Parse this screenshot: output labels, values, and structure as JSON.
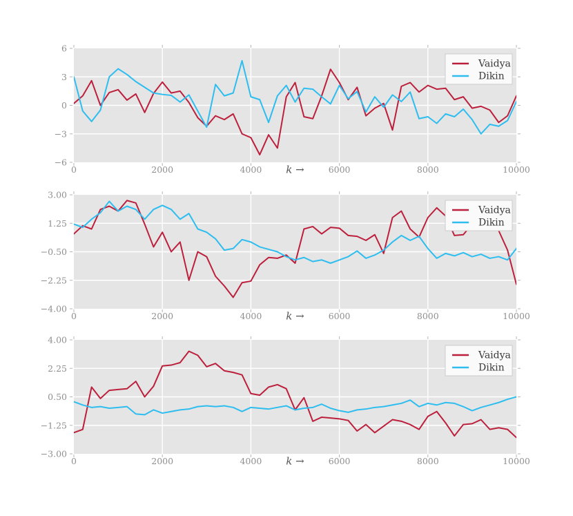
{
  "figure": {
    "background": "#ffffff",
    "plot_background": "#e5e5e5",
    "grid_color": "#ffffff",
    "tick_mark_color": "#b5b5b5",
    "tick_label_color": "#8f8f8f",
    "axis_label_color": "#545454",
    "legend_style": {
      "bg": "#fafafa",
      "border": "#cccccc",
      "text_color": "#3a3a3a"
    }
  },
  "series_colors": {
    "Vaidya": "#bc1f3b",
    "Dikin": "#2dbdef"
  },
  "chart_data": [
    {
      "name": "top",
      "type": "line",
      "title": "",
      "xlabel": "k →",
      "ylabel": "",
      "xlim": [
        0,
        10000
      ],
      "ylim": [
        -6,
        6
      ],
      "x_start": 0,
      "x_step": 200,
      "grid": true,
      "legend_position": "upper right",
      "xtick_values": [
        0,
        2000,
        4000,
        6000,
        8000,
        10000
      ],
      "xtick_labels": [
        "0",
        "2000",
        "4000",
        "6000",
        "8000",
        "10000"
      ],
      "ytick_values": [
        6,
        3,
        0,
        -3,
        -6
      ],
      "ytick_labels": [
        "6",
        "3",
        "0",
        "−3",
        "−6"
      ],
      "series": [
        {
          "name": "Vaidya",
          "color": "#bc1f3b",
          "values": [
            0.2,
            1.0,
            2.6,
            0.0,
            1.35,
            1.65,
            0.55,
            1.2,
            -0.75,
            1.25,
            2.45,
            1.3,
            1.5,
            0.3,
            -1.3,
            -2.2,
            -1.1,
            -1.5,
            -0.9,
            -3.0,
            -3.4,
            -5.2,
            -3.1,
            -4.5,
            0.9,
            2.4,
            -1.2,
            -1.4,
            1.0,
            3.8,
            2.4,
            0.6,
            1.9,
            -1.1,
            -0.3,
            0.2,
            -2.6,
            2.0,
            2.4,
            1.4,
            2.1,
            1.7,
            1.8,
            0.6,
            0.9,
            -0.3,
            -0.1,
            -0.5,
            -1.8,
            -1.1,
            1.0
          ]
        },
        {
          "name": "Dikin",
          "color": "#2dbdef",
          "values": [
            3.0,
            -0.6,
            -1.7,
            -0.5,
            3.0,
            3.85,
            3.25,
            2.5,
            1.9,
            1.3,
            1.15,
            1.05,
            0.35,
            1.1,
            -0.6,
            -2.3,
            2.2,
            1.0,
            1.3,
            4.7,
            0.9,
            0.6,
            -1.8,
            1.0,
            2.1,
            0.35,
            1.8,
            1.7,
            0.9,
            0.15,
            2.1,
            0.7,
            1.45,
            -0.7,
            0.9,
            -0.2,
            1.1,
            0.4,
            1.4,
            -1.4,
            -1.2,
            -1.9,
            -0.9,
            -1.2,
            -0.4,
            -1.5,
            -3.0,
            -2.0,
            -2.2,
            -1.6,
            0.4
          ]
        }
      ]
    },
    {
      "name": "middle",
      "type": "line",
      "title": "",
      "xlabel": "k →",
      "ylabel": "",
      "xlim": [
        0,
        10000
      ],
      "ylim": [
        -4,
        3
      ],
      "x_start": 0,
      "x_step": 200,
      "grid": true,
      "legend_position": "upper right",
      "xtick_values": [
        0,
        2000,
        4000,
        6000,
        8000,
        10000
      ],
      "xtick_labels": [
        "0",
        "2000",
        "4000",
        "6000",
        "8000",
        "10000"
      ],
      "ytick_values": [
        3.0,
        1.25,
        -0.5,
        -2.25,
        -4.0
      ],
      "ytick_labels": [
        "3.00",
        "1.25",
        "−0.50",
        "−2.25",
        "−4.00"
      ],
      "series": [
        {
          "name": "Vaidya",
          "color": "#bc1f3b",
          "values": [
            0.6,
            1.1,
            0.9,
            2.1,
            2.3,
            2.0,
            2.65,
            2.5,
            1.2,
            -0.2,
            0.7,
            -0.5,
            0.1,
            -2.25,
            -0.5,
            -0.8,
            -2.0,
            -2.6,
            -3.3,
            -2.4,
            -2.3,
            -1.3,
            -0.85,
            -0.9,
            -0.7,
            -1.2,
            0.9,
            1.05,
            0.6,
            1.0,
            0.95,
            0.5,
            0.45,
            0.2,
            0.55,
            -0.6,
            1.6,
            2.0,
            0.9,
            0.4,
            1.6,
            2.2,
            1.7,
            0.5,
            0.55,
            1.2,
            1.15,
            1.3,
            0.8,
            -0.4,
            -2.5
          ]
        },
        {
          "name": "Dikin",
          "color": "#2dbdef",
          "values": [
            1.2,
            1.0,
            1.5,
            1.9,
            2.6,
            2.0,
            2.3,
            2.1,
            1.5,
            2.1,
            2.35,
            2.1,
            1.5,
            1.85,
            0.9,
            0.7,
            0.3,
            -0.4,
            -0.3,
            0.25,
            0.1,
            -0.2,
            -0.35,
            -0.5,
            -0.8,
            -1.0,
            -0.85,
            -1.1,
            -1.0,
            -1.2,
            -1.0,
            -0.8,
            -0.45,
            -0.9,
            -0.7,
            -0.4,
            0.1,
            0.5,
            0.2,
            0.45,
            -0.3,
            -0.9,
            -0.6,
            -0.75,
            -0.55,
            -0.8,
            -0.65,
            -0.9,
            -0.8,
            -1.0,
            -0.3
          ]
        }
      ]
    },
    {
      "name": "bottom",
      "type": "line",
      "title": "",
      "xlabel": "k →",
      "ylabel": "",
      "xlim": [
        0,
        10000
      ],
      "ylim": [
        -3,
        4
      ],
      "x_start": 0,
      "x_step": 200,
      "grid": true,
      "legend_position": "upper right",
      "xtick_values": [
        0,
        2000,
        4000,
        6000,
        8000,
        10000
      ],
      "xtick_labels": [
        "0",
        "2000",
        "4000",
        "6000",
        "8000",
        "10000"
      ],
      "ytick_values": [
        4.0,
        2.25,
        0.5,
        -1.25,
        -3.0
      ],
      "ytick_labels": [
        "4.00",
        "2.25",
        "0.50",
        "−1.25",
        "−3.00"
      ],
      "series": [
        {
          "name": "Vaidya",
          "color": "#bc1f3b",
          "values": [
            -1.7,
            -1.5,
            1.1,
            0.4,
            0.9,
            0.95,
            1.0,
            1.45,
            0.5,
            1.15,
            2.4,
            2.45,
            2.6,
            3.3,
            3.05,
            2.35,
            2.55,
            2.1,
            2.0,
            1.85,
            0.7,
            0.6,
            1.1,
            1.25,
            1.0,
            -0.3,
            0.45,
            -1.0,
            -0.75,
            -0.8,
            -0.85,
            -0.95,
            -1.6,
            -1.2,
            -1.7,
            -1.3,
            -0.9,
            -1.0,
            -1.2,
            -1.5,
            -0.7,
            -0.4,
            -1.1,
            -1.9,
            -1.2,
            -1.15,
            -0.9,
            -1.5,
            -1.4,
            -1.5,
            -2.0
          ]
        },
        {
          "name": "Dikin",
          "color": "#2dbdef",
          "values": [
            0.2,
            0.0,
            -0.15,
            -0.1,
            -0.2,
            -0.15,
            -0.1,
            -0.55,
            -0.6,
            -0.3,
            -0.5,
            -0.4,
            -0.3,
            -0.25,
            -0.1,
            -0.05,
            -0.1,
            -0.05,
            -0.15,
            -0.4,
            -0.15,
            -0.2,
            -0.25,
            -0.15,
            -0.05,
            -0.3,
            -0.2,
            -0.15,
            0.05,
            -0.2,
            -0.35,
            -0.45,
            -0.3,
            -0.25,
            -0.15,
            -0.1,
            0.0,
            0.1,
            0.3,
            -0.1,
            0.1,
            0.0,
            0.15,
            0.1,
            -0.1,
            -0.35,
            -0.15,
            0.0,
            0.15,
            0.35,
            0.5
          ]
        }
      ]
    }
  ]
}
